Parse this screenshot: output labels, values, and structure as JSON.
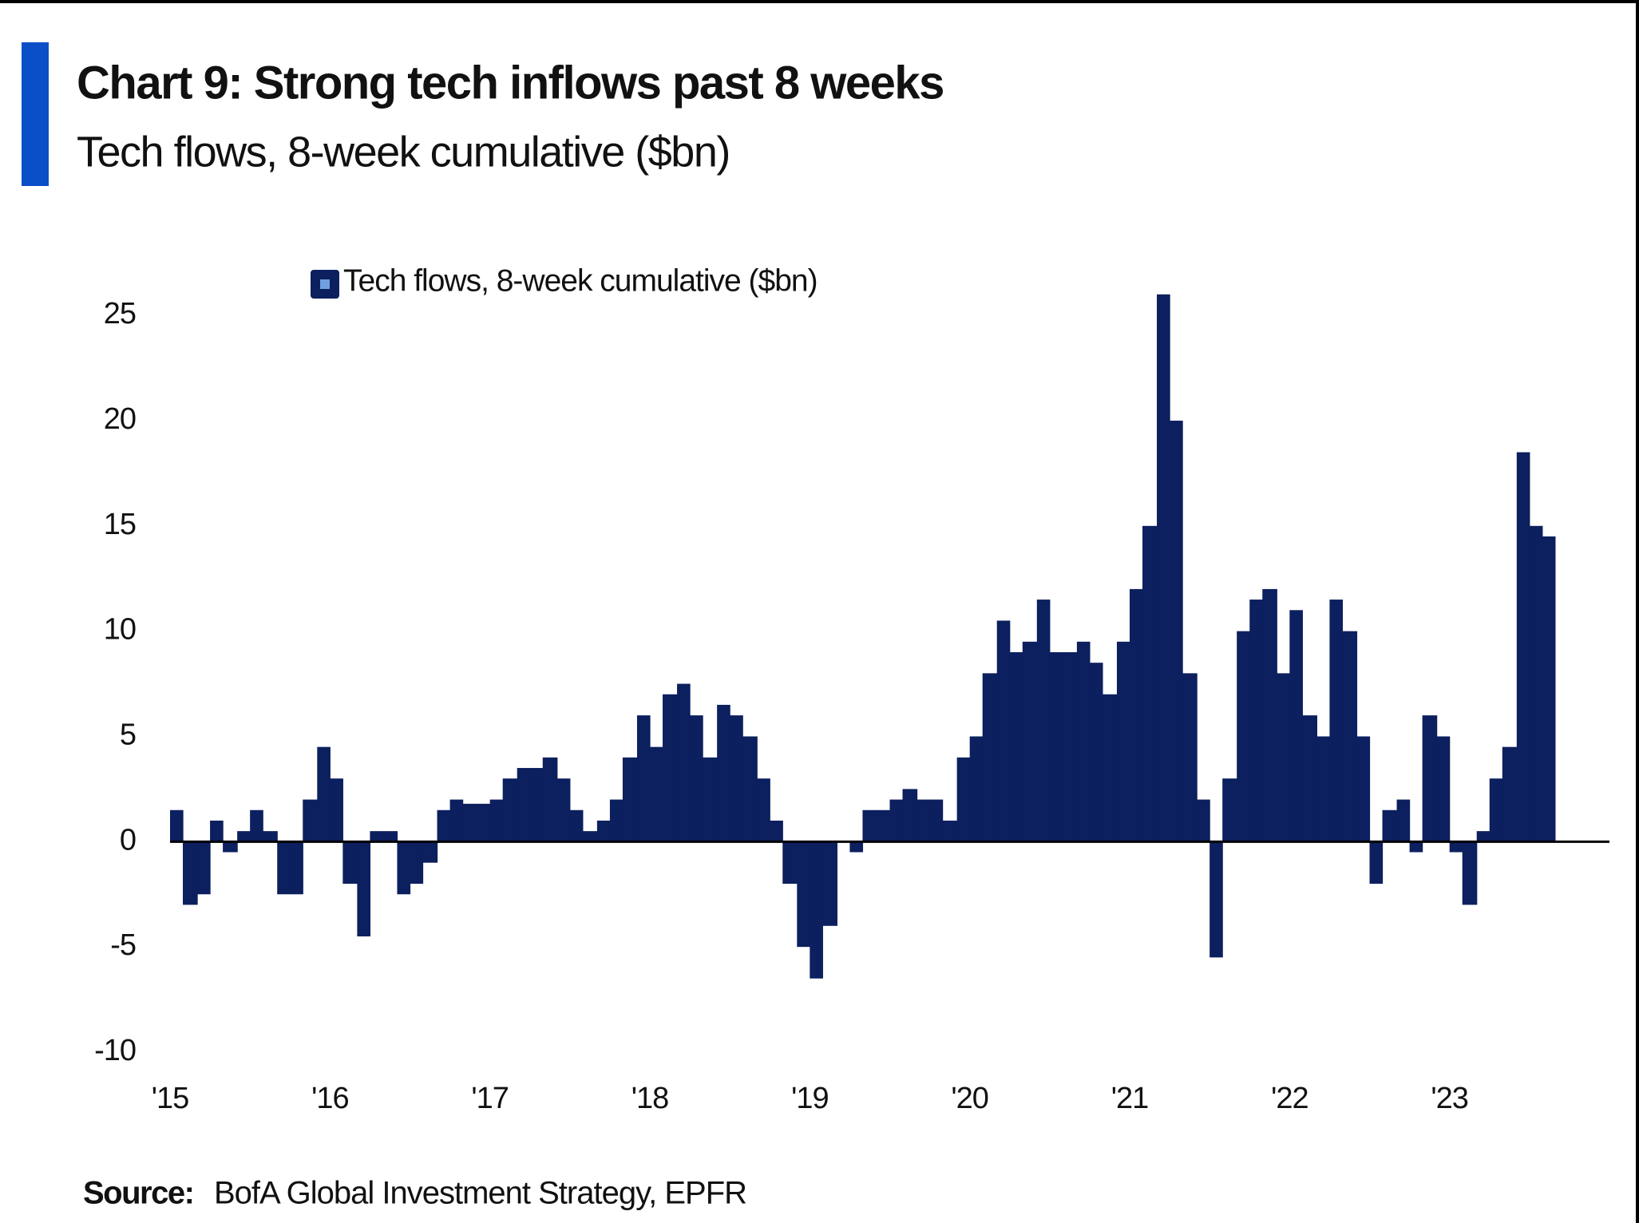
{
  "chart_data": {
    "type": "bar",
    "title": "Chart 9: Strong tech inflows past 8 weeks",
    "subtitle": "Tech flows, 8-week cumulative ($bn)",
    "source_label": "Source:",
    "source": "BofA Global Investment Strategy, EPFR",
    "xlim": [
      2015,
      2024
    ],
    "xticks": [
      {
        "value": 2015,
        "label": "'15"
      },
      {
        "value": 2016,
        "label": "'16"
      },
      {
        "value": 2017,
        "label": "'17"
      },
      {
        "value": 2018,
        "label": "'18"
      },
      {
        "value": 2019,
        "label": "'19"
      },
      {
        "value": 2020,
        "label": "'20"
      },
      {
        "value": 2021,
        "label": "'21"
      },
      {
        "value": 2022,
        "label": "'22"
      },
      {
        "value": 2023,
        "label": "'23"
      }
    ],
    "ylim": [
      -10,
      28
    ],
    "yticks": [
      -10,
      -5,
      0,
      5,
      10,
      15,
      20,
      25
    ],
    "legend": "top",
    "x": [
      2015,
      2015.08,
      2015.17,
      2015.25,
      2015.33,
      2015.42,
      2015.5,
      2015.58,
      2015.67,
      2015.75,
      2015.83,
      2015.92,
      2016,
      2016.08,
      2016.17,
      2016.25,
      2016.33,
      2016.42,
      2016.5,
      2016.58,
      2016.67,
      2016.75,
      2016.83,
      2016.92,
      2017,
      2017.08,
      2017.17,
      2017.25,
      2017.33,
      2017.42,
      2017.5,
      2017.58,
      2017.67,
      2017.75,
      2017.83,
      2017.92,
      2018,
      2018.08,
      2018.17,
      2018.25,
      2018.33,
      2018.42,
      2018.5,
      2018.58,
      2018.67,
      2018.75,
      2018.83,
      2018.92,
      2019,
      2019.08,
      2019.17,
      2019.25,
      2019.33,
      2019.42,
      2019.5,
      2019.58,
      2019.67,
      2019.75,
      2019.83,
      2019.92,
      2020,
      2020.08,
      2020.17,
      2020.25,
      2020.33,
      2020.42,
      2020.5,
      2020.58,
      2020.67,
      2020.75,
      2020.83,
      2020.92,
      2021,
      2021.08,
      2021.17,
      2021.25,
      2021.33,
      2021.42,
      2021.5,
      2021.58,
      2021.67,
      2021.75,
      2021.83,
      2021.92,
      2022,
      2022.08,
      2022.17,
      2022.25,
      2022.33,
      2022.42,
      2022.5,
      2022.58,
      2022.67,
      2022.75,
      2022.83,
      2022.92,
      2023,
      2023.08,
      2023.17,
      2023.25,
      2023.33,
      2023.42,
      2023.5,
      2023.58
    ],
    "series": [
      {
        "name": "Tech flows, 8-week cumulative ($bn)",
        "color": "#0c1f5e",
        "values": [
          1.5,
          -3,
          -2.5,
          1,
          -0.5,
          0.5,
          1.5,
          0.5,
          -2.5,
          -2.5,
          2,
          4.5,
          3,
          -2,
          -4.5,
          0.5,
          0.5,
          -2.5,
          -2,
          -1,
          1.5,
          2,
          1.8,
          1.8,
          2,
          3,
          3.5,
          3.5,
          4,
          3,
          1.5,
          0.5,
          1,
          2,
          4,
          6,
          4.5,
          7,
          7.5,
          6,
          4,
          6.5,
          6,
          5,
          3,
          1,
          -2,
          -5,
          -6.5,
          -4,
          0,
          -0.5,
          1.5,
          1.5,
          2,
          2.5,
          2,
          2,
          1,
          4,
          5,
          8,
          10.5,
          9,
          9.5,
          11.5,
          9,
          9,
          9.5,
          8.5,
          7,
          9.5,
          12,
          15,
          26,
          20,
          8,
          2,
          -5.5,
          3,
          10,
          11.5,
          12,
          8,
          11,
          6,
          5,
          11.5,
          10,
          5,
          -2,
          1.5,
          2,
          -0.5,
          6,
          5,
          -0.5,
          -3,
          0.5,
          3,
          4.5,
          18.5,
          15,
          14.5
        ]
      }
    ]
  }
}
